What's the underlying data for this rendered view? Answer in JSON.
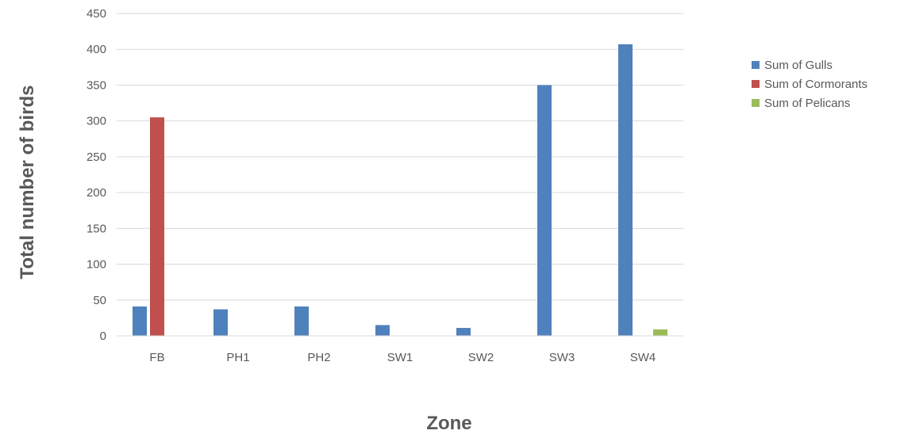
{
  "chart_data": {
    "type": "bar",
    "title": "",
    "xlabel": "Zone",
    "ylabel": "Total number of birds",
    "categories": [
      "FB",
      "PH1",
      "PH2",
      "SW1",
      "SW2",
      "SW3",
      "SW4"
    ],
    "series": [
      {
        "name": "Sum of Gulls",
        "color": "#4f81bd",
        "values": [
          41,
          37,
          41,
          15,
          11,
          350,
          407
        ]
      },
      {
        "name": "Sum of Cormorants",
        "color": "#c0504d",
        "values": [
          305,
          0,
          0,
          0,
          0,
          0,
          0
        ]
      },
      {
        "name": "Sum of Pelicans",
        "color": "#9bbb59",
        "values": [
          0,
          0,
          0,
          0,
          0,
          0,
          9
        ]
      }
    ],
    "ylim": [
      0,
      450
    ],
    "yticks": [
      0,
      50,
      100,
      150,
      200,
      250,
      300,
      350,
      400,
      450
    ],
    "grid": true,
    "legend_position": "right",
    "gridline_color": "#d9d9d9"
  }
}
